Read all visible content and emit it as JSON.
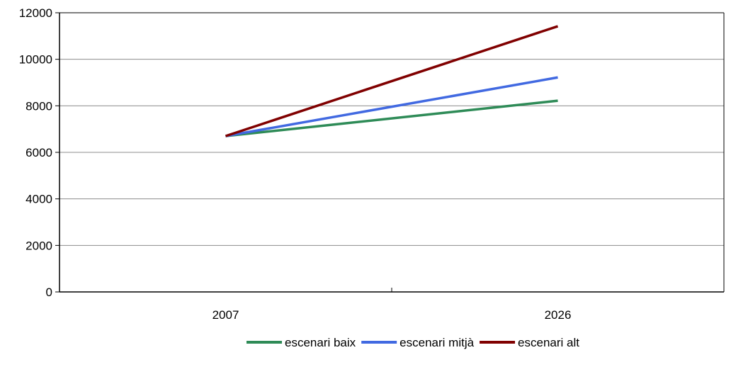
{
  "chart_data": {
    "type": "line",
    "categories": [
      "2007",
      "2026"
    ],
    "series": [
      {
        "name": "escenari baix",
        "values": [
          6700,
          8220
        ],
        "color": "#2E8B57"
      },
      {
        "name": "escenari mitjà",
        "values": [
          6700,
          9220
        ],
        "color": "#4169E1"
      },
      {
        "name": "escenari alt",
        "values": [
          6700,
          11420
        ],
        "color": "#800000"
      }
    ],
    "ylim": [
      0,
      12000
    ],
    "yticks": [
      0,
      2000,
      4000,
      6000,
      8000,
      10000,
      12000
    ],
    "grid": true,
    "legend_position": "bottom"
  }
}
